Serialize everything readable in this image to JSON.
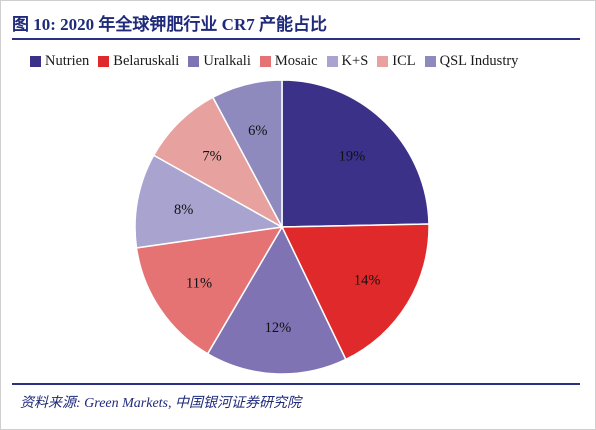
{
  "title": "图 10:  2020 年全球钾肥行业 CR7 产能占比",
  "source": "资料来源:  Green Markets,  中国银河证券研究院",
  "chart_data": {
    "type": "pie",
    "title": "图 10:  2020 年全球钾肥行业 CR7 产能占比",
    "legend_position": "top",
    "categories": [
      "Nutrien",
      "Belaruskali",
      "Uralkali",
      "Mosaic",
      "K+S",
      "ICL",
      "QSL Industry"
    ],
    "values": [
      19,
      14,
      12,
      11,
      8,
      7,
      6
    ],
    "labels": [
      "19%",
      "14%",
      "12%",
      "11%",
      "8%",
      "7%",
      "6%"
    ],
    "colors": [
      "#3b3189",
      "#e0292b",
      "#7f73b3",
      "#e57373",
      "#a8a4cf",
      "#e7a2a0",
      "#8f8abd"
    ]
  }
}
